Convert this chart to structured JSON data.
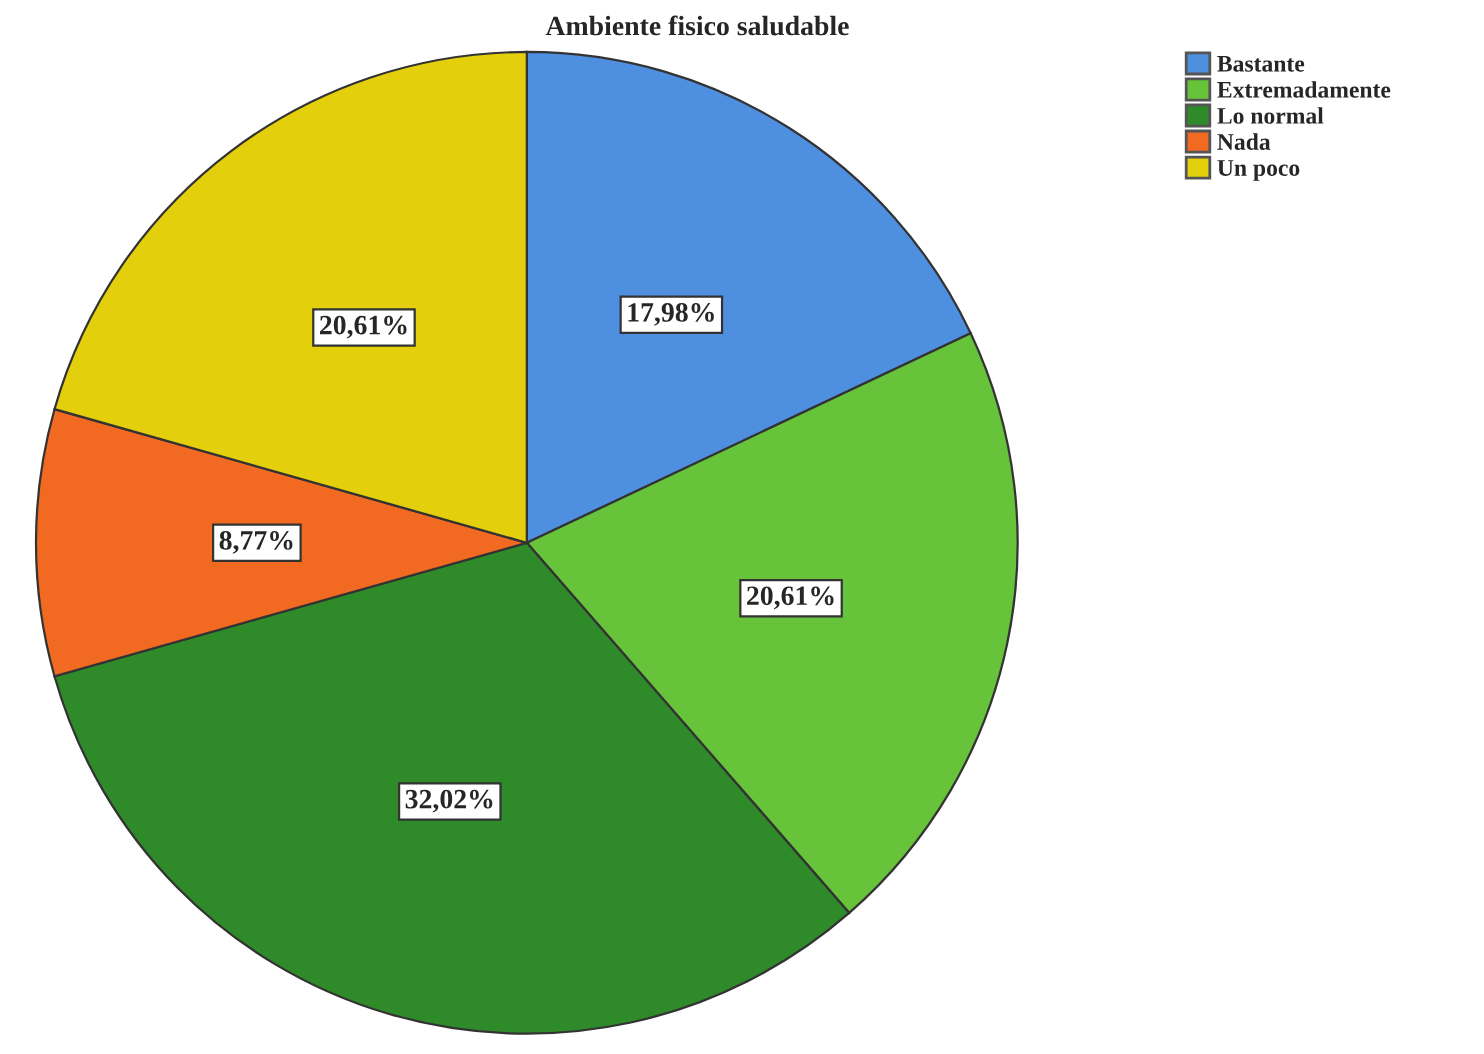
{
  "chart_data": {
    "type": "pie",
    "title": "Ambiente fisico saludable",
    "categories": [
      "Bastante",
      "Extremadamente",
      "Lo normal",
      "Nada",
      "Un poco"
    ],
    "values": [
      17.98,
      20.61,
      32.02,
      8.77,
      20.61
    ],
    "colors": [
      "#4f8fe0",
      "#66c33a",
      "#2f8a2a",
      "#f26a22",
      "#e3cf0c"
    ],
    "value_labels": [
      "17,98%",
      "20,61%",
      "32,02%",
      "8,77%",
      "20,61%"
    ],
    "legend": "top right"
  }
}
